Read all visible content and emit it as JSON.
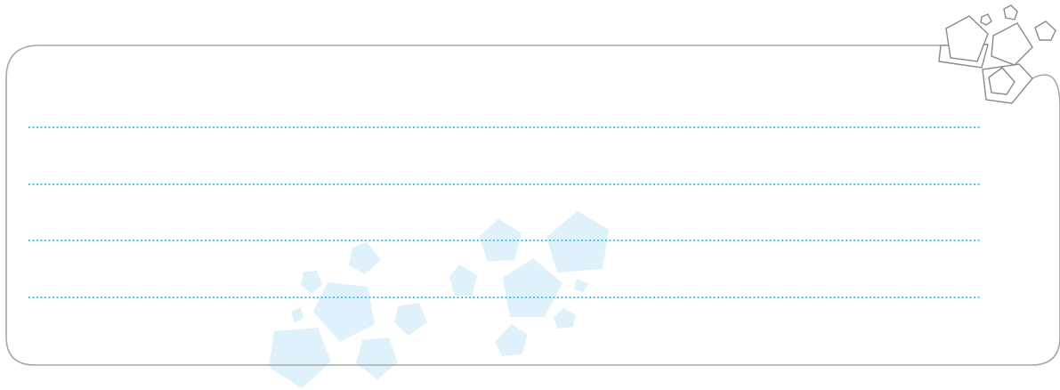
{
  "card": {
    "border_color": "#a7a7a7",
    "background": "#ffffff"
  },
  "writing_area": {
    "line_count": 4,
    "line_color": "#4fc3e8",
    "line_style": "dotted"
  },
  "decoration": {
    "outline_pentagons_color": "#8a8a8a",
    "light_pentagons_color": "#dff1fa"
  }
}
